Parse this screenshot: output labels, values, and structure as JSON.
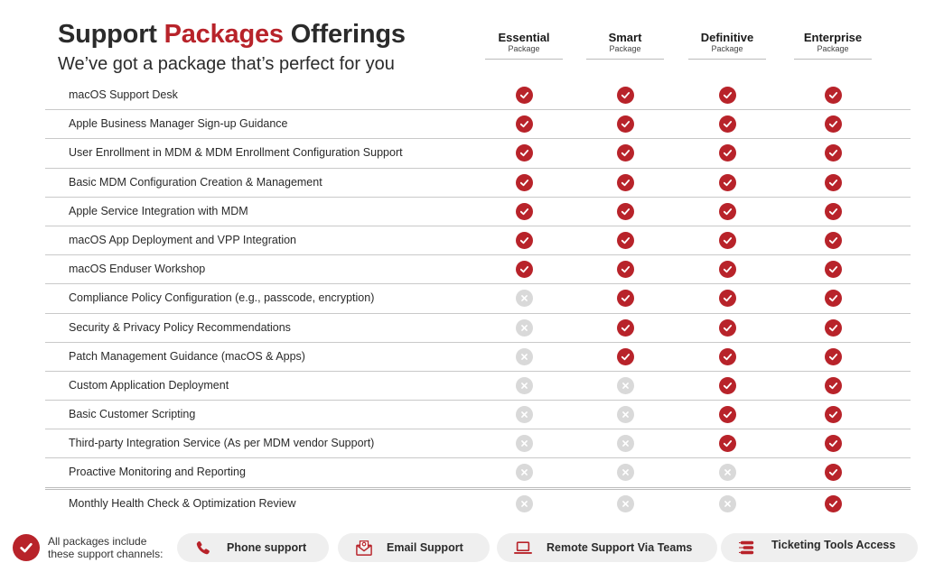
{
  "header": {
    "title_part1": "Support ",
    "title_accent": "Packages",
    "title_part2": " Offerings",
    "subtitle": "We’ve got a package that’s perfect for you"
  },
  "packages": [
    {
      "name": "Essential",
      "sub": "Package"
    },
    {
      "name": "Smart",
      "sub": "Package"
    },
    {
      "name": "Definitive",
      "sub": "Package"
    },
    {
      "name": "Enterprise",
      "sub": "Package"
    }
  ],
  "features": [
    {
      "label": "macOS Support Desk",
      "included": [
        true,
        true,
        true,
        true
      ]
    },
    {
      "label": "Apple Business Manager Sign-up Guidance",
      "included": [
        true,
        true,
        true,
        true
      ]
    },
    {
      "label": "User Enrollment in MDM & MDM Enrollment Configuration Support",
      "included": [
        true,
        true,
        true,
        true
      ]
    },
    {
      "label": "Basic MDM Configuration Creation & Management",
      "included": [
        true,
        true,
        true,
        true
      ]
    },
    {
      "label": "Apple Service Integration with MDM",
      "included": [
        true,
        true,
        true,
        true
      ]
    },
    {
      "label": "macOS App Deployment and VPP Integration",
      "included": [
        true,
        true,
        true,
        true
      ]
    },
    {
      "label": "macOS Enduser Workshop",
      "included": [
        true,
        true,
        true,
        true
      ]
    },
    {
      "label": "Compliance Policy Configuration (e.g., passcode, encryption)",
      "included": [
        false,
        true,
        true,
        true
      ]
    },
    {
      "label": "Security & Privacy Policy Recommendations",
      "included": [
        false,
        true,
        true,
        true
      ]
    },
    {
      "label": "Patch Management Guidance (macOS & Apps)",
      "included": [
        false,
        true,
        true,
        true
      ]
    },
    {
      "label": "Custom Application Deployment",
      "included": [
        false,
        false,
        true,
        true
      ]
    },
    {
      "label": "Basic Customer Scripting",
      "included": [
        false,
        false,
        true,
        true
      ]
    },
    {
      "label": "Third-party Integration Service (As per MDM vendor Support)",
      "included": [
        false,
        false,
        true,
        true
      ]
    },
    {
      "label": "Proactive Monitoring and Reporting",
      "included": [
        false,
        false,
        false,
        true
      ]
    },
    {
      "label": "Monthly Health Check & Optimization Review",
      "included": [
        false,
        false,
        false,
        true
      ]
    }
  ],
  "footer": {
    "note_line1": "All packages include",
    "note_line2": "these support channels:",
    "channels": [
      {
        "label": "Phone support",
        "icon": "phone-icon"
      },
      {
        "label": "Email Support",
        "icon": "email-icon"
      },
      {
        "label": "Remote Support Via Teams",
        "icon": "laptop-icon"
      },
      {
        "label": "Ticketing Tools Access",
        "icon": "ticketing-icon"
      }
    ]
  },
  "colors": {
    "accent": "#b8232a",
    "excluded": "#d9d9d9",
    "pill": "#efefef"
  }
}
